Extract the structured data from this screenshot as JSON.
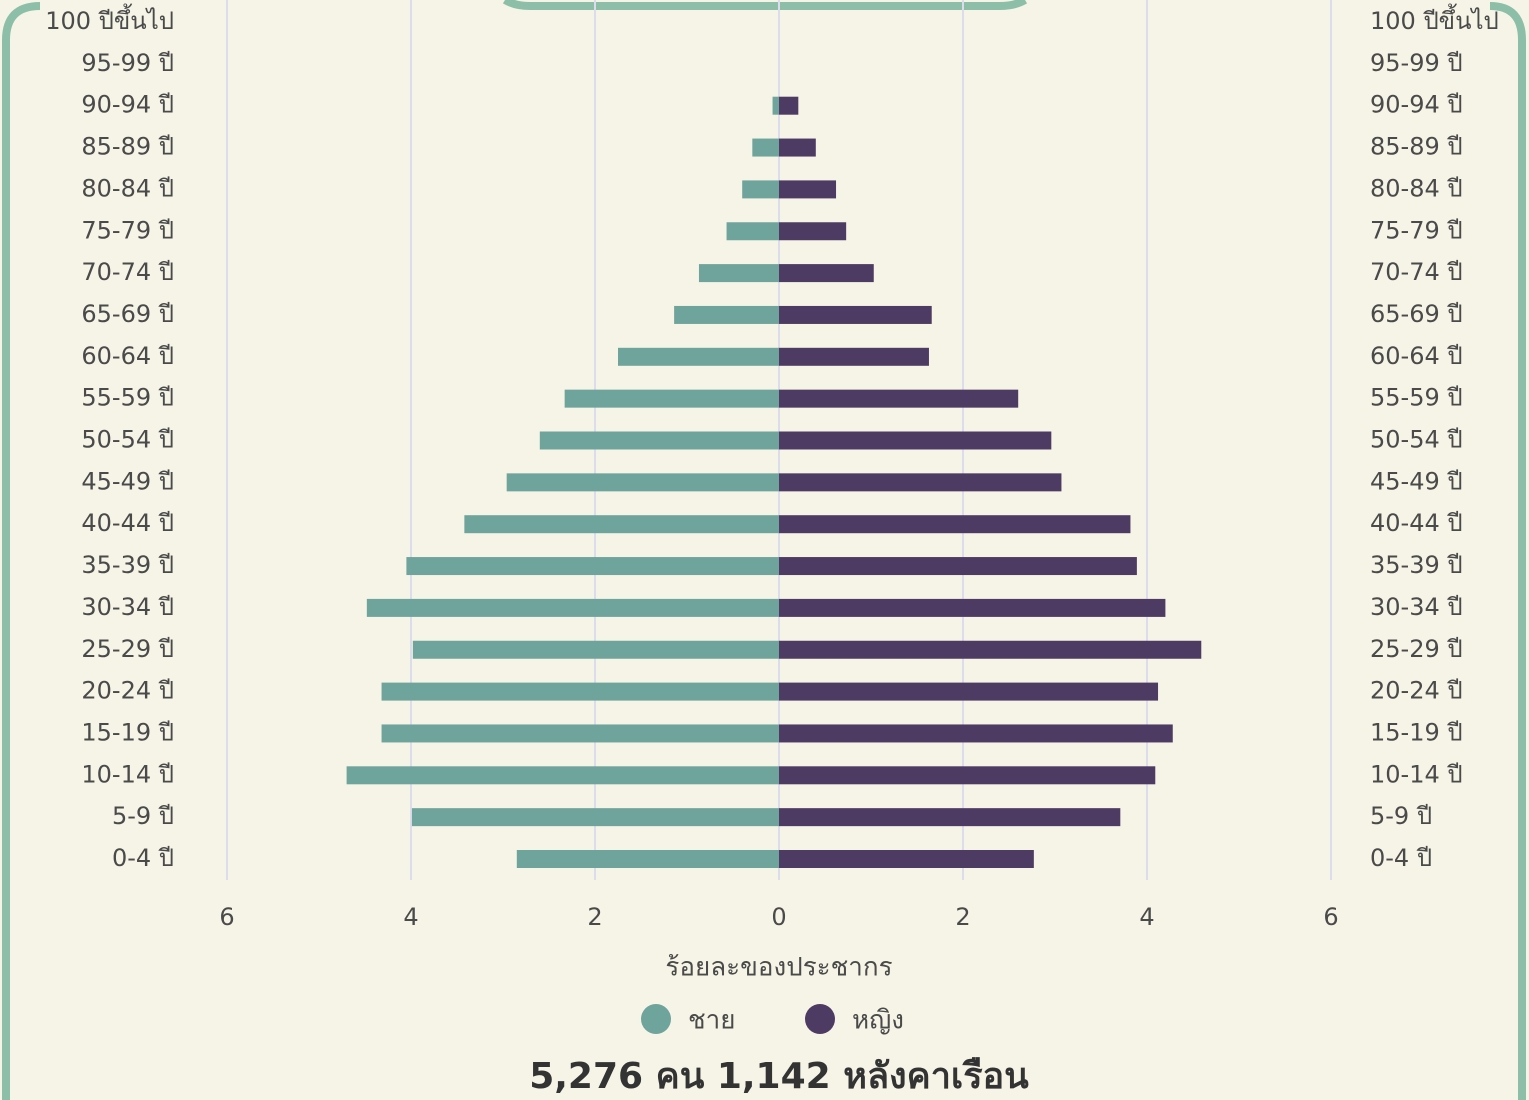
{
  "chart_data": {
    "type": "pyramid",
    "x_label": "ร้อยละของประชากร",
    "footer": "5,276 คน 1,142 หลังคาเรือน",
    "categories": [
      "100 ปีขึ้นไป",
      "95-99 ปี",
      "90-94 ปี",
      "85-89 ปี",
      "80-84 ปี",
      "75-79 ปี",
      "70-74 ปี",
      "65-69 ปี",
      "60-64 ปี",
      "55-59 ปี",
      "50-54 ปี",
      "45-49 ปี",
      "40-44 ปี",
      "35-39 ปี",
      "30-34 ปี",
      "25-29 ปี",
      "20-24 ปี",
      "15-19 ปี",
      "10-14 ปี",
      "5-9 ปี",
      "0-4 ปี"
    ],
    "series": [
      {
        "name": "ชาย",
        "color": "#6fa49c",
        "values": [
          0,
          0,
          -0.07,
          -0.29,
          -0.4,
          -0.57,
          -0.87,
          -1.14,
          -1.75,
          -2.33,
          -2.6,
          -2.96,
          -3.42,
          -4.05,
          -4.48,
          -3.98,
          -4.32,
          -4.32,
          -4.7,
          -3.99,
          -2.85
        ]
      },
      {
        "name": "หญิง",
        "color": "#4e3b64",
        "values": [
          0,
          0,
          0.21,
          0.4,
          0.62,
          0.73,
          1.03,
          1.66,
          1.63,
          2.6,
          2.96,
          3.07,
          3.82,
          3.89,
          4.2,
          4.59,
          4.12,
          4.28,
          4.09,
          3.71,
          2.77
        ]
      }
    ],
    "xlim": [
      -6,
      6
    ],
    "xticks": [
      {
        "value": -6,
        "label": "6"
      },
      {
        "value": -4,
        "label": "4"
      },
      {
        "value": -2,
        "label": "2"
      },
      0,
      2,
      4,
      6
    ],
    "grid": true
  }
}
